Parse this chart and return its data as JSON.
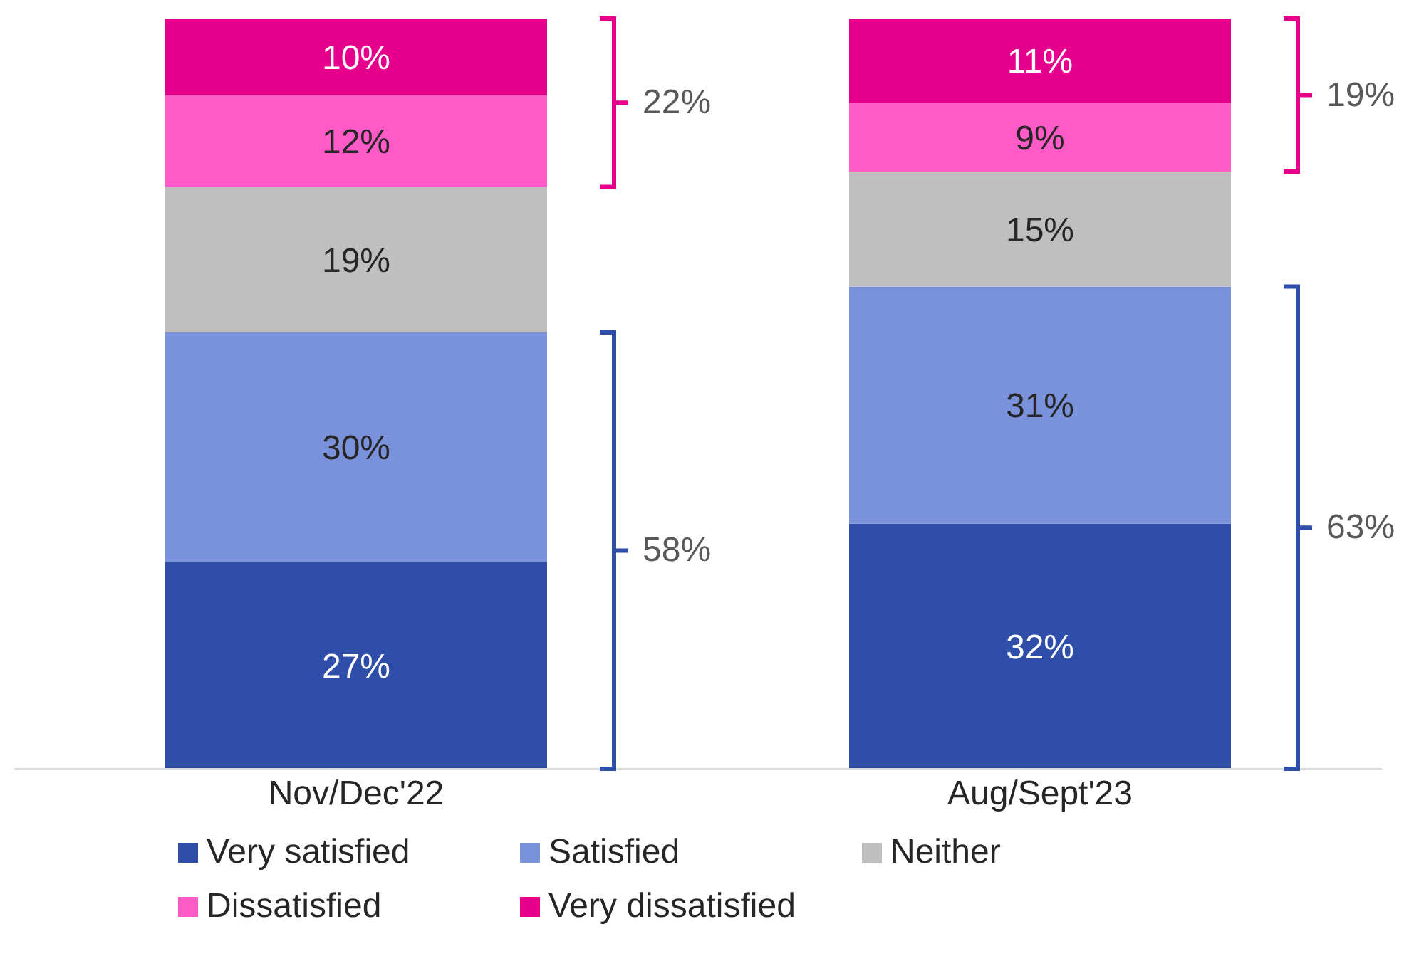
{
  "chart_data": {
    "type": "bar",
    "stacked": true,
    "legend": "bottom",
    "categories": [
      "Nov/Dec'22",
      "Aug/Sept'23"
    ],
    "series": [
      {
        "name": "Very satisfied",
        "color": "#2f4eaa",
        "values": [
          27,
          32
        ],
        "value_labels": [
          "27%",
          "32%"
        ]
      },
      {
        "name": "Satisfied",
        "color": "#7a91db",
        "values": [
          30,
          31
        ],
        "value_labels": [
          "30%",
          "31%"
        ]
      },
      {
        "name": "Neither",
        "color": "#bfbfbf",
        "values": [
          19,
          15
        ],
        "value_labels": [
          "19%",
          "15%"
        ]
      },
      {
        "name": "Dissatisfied",
        "color": "#ff5bc8",
        "values": [
          12,
          9
        ],
        "value_labels": [
          "12%",
          "9%"
        ]
      },
      {
        "name": "Very dissatisfied",
        "color": "#e6008c",
        "values": [
          10,
          11
        ],
        "value_labels": [
          "10%",
          "11%"
        ]
      }
    ],
    "annotations": [
      "58%",
      "22%",
      "63%",
      "19%"
    ]
  }
}
